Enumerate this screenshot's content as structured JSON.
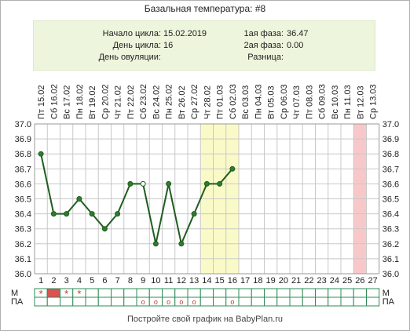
{
  "header": {
    "title": "Базальная температура: #8"
  },
  "info": {
    "cycle_start_label": "Начало цикла:",
    "cycle_start_value": "15.02.2019",
    "cycle_day_label": "День цикла:",
    "cycle_day_value": "16",
    "ovulation_day_label": "День овуляции:",
    "ovulation_day_value": "",
    "phase1_label": "1ая фаза:",
    "phase1_value": "36.47",
    "phase2_label": "2ая фаза:",
    "phase2_value": "0.00",
    "difference_label": "Разница:",
    "difference_value": ""
  },
  "footer": {
    "text": "Постройте свой график на BabyPlan.ru"
  },
  "colors": {
    "line": "#1f5c1f",
    "point_fill": "#2e7d2e",
    "highlight_band": "#fafac8",
    "ovulation_band": "#f8c8c8",
    "grid": "#c8c8c8",
    "menstruation_fill": "#d9534f",
    "marker": "#c0392b"
  },
  "chart_data": {
    "type": "line",
    "dates": [
      "Пт 15.02",
      "Сб 16.02",
      "Вс 17.02",
      "Пн 18.02",
      "Вт 19.02",
      "Ср 20.02",
      "Чт 21.02",
      "Пт 22.02",
      "Сб 23.02",
      "Вс 24.02",
      "Пн 25.02",
      "Вт 26.02",
      "Ср 27.02",
      "Чт 28.02",
      "Пт 01.03",
      "Сб 02.03",
      "Вс 03.03",
      "Пн 04.03",
      "Вт 05.03",
      "Ср 06.03",
      "Чт 07.03",
      "Пт 08.03",
      "Сб 09.03",
      "Вс 10.03",
      "Пн 11.03",
      "Вт 12.03",
      "Ср 13.03"
    ],
    "days": [
      1,
      2,
      3,
      4,
      5,
      6,
      7,
      8,
      9,
      10,
      11,
      12,
      13,
      14,
      15,
      16,
      17,
      18,
      19,
      20,
      21,
      22,
      23,
      24,
      25,
      26,
      27
    ],
    "temperatures": [
      36.8,
      36.4,
      36.4,
      36.5,
      36.4,
      36.3,
      36.4,
      36.6,
      36.6,
      36.2,
      36.6,
      36.2,
      36.4,
      36.6,
      36.6,
      36.7
    ],
    "hollow_points": [
      9
    ],
    "ylim": [
      36.0,
      37.0
    ],
    "yticks": [
      "37.0",
      "36.9",
      "36.8",
      "36.7",
      "36.6",
      "36.5",
      "36.4",
      "36.3",
      "36.2",
      "36.1",
      "36.0"
    ],
    "highlight_days": [
      14,
      16
    ],
    "ovulation_band_day": 26,
    "row_labels": {
      "m": "M",
      "pa": "ПА"
    },
    "m_row": {
      "filled_days": [
        2
      ],
      "star_days": [
        1,
        3,
        4
      ],
      "star_symbol": "*"
    },
    "pa_row": {
      "circle_days": [
        9,
        10,
        11,
        12,
        13,
        16
      ],
      "circle_symbol": "o"
    }
  }
}
